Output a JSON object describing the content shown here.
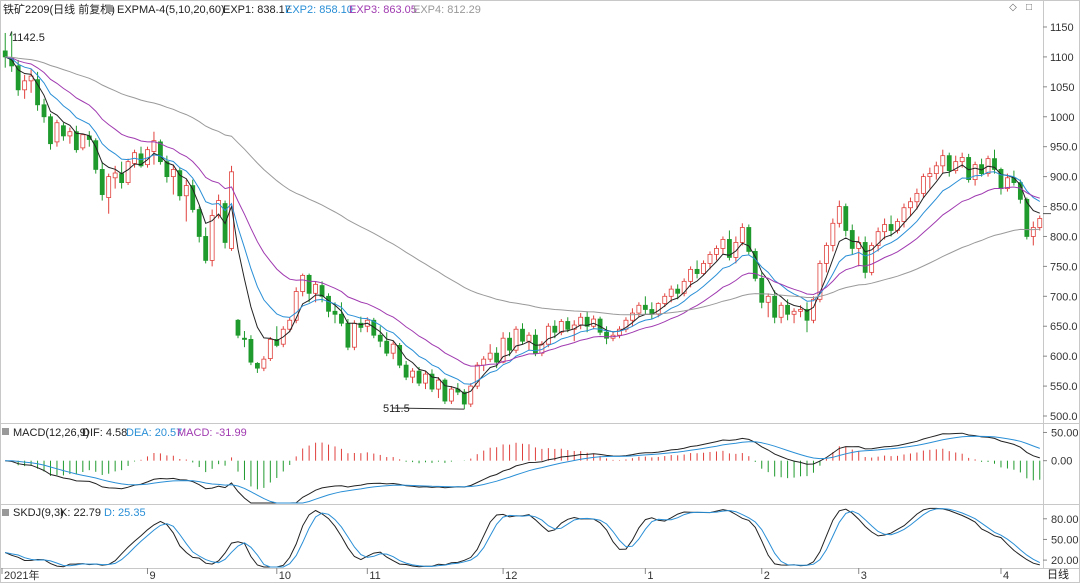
{
  "main_legend": {
    "instrument": "铁矿2209(日线 前复权)",
    "indicator": "EXPMA-4(5,10,20,60)",
    "exp1": "EXP1: 838.17",
    "exp2": "EXP2: 858.10",
    "exp3": "EXP3: 863.05",
    "exp4": "EXP4: 812.29"
  },
  "macd_legend": {
    "name": "MACD(12,26,9)",
    "dif": "DIF: 4.58",
    "dea": "DEA: 20.57",
    "macd": "MACD: -31.99"
  },
  "kdj_legend": {
    "name": "SKDJ(9,3)",
    "k": "K: 22.79",
    "d": "D: 25.35"
  },
  "annotations": {
    "high": "1142.5",
    "low": "511.5"
  },
  "corner_icons": [
    "diamond-icon",
    "square-icon"
  ],
  "x_axis": {
    "labels": [
      {
        "text": "2021年",
        "index": 0
      },
      {
        "text": "9",
        "index": 22
      },
      {
        "text": "10",
        "index": 42
      },
      {
        "text": "11",
        "index": 56
      },
      {
        "text": "12",
        "index": 77
      },
      {
        "text": "1",
        "index": 99
      },
      {
        "text": "2",
        "index": 117
      },
      {
        "text": "3",
        "index": 132
      },
      {
        "text": "4",
        "index": 154
      }
    ],
    "period_button": "日线"
  },
  "colors": {
    "up": "#e0403c",
    "down": "#1f9a2d",
    "exp1": "#222222",
    "exp2": "#2a8fd6",
    "exp3": "#a03ab0",
    "exp4": "#9a9a9a",
    "dif": "#222222",
    "dea": "#2a8fd6",
    "grid": "#e6e6e6"
  },
  "chart_data": [
    {
      "type": "candlestick",
      "title": "铁矿2209(日线 前复权)",
      "yticks": [
        "1150",
        "1100",
        "1050",
        "1000",
        "950.0",
        "900.0",
        "850.0",
        "800.0",
        "750.0",
        "700.0",
        "650.0",
        "600.0",
        "550.0",
        "500.0"
      ],
      "ylim": [
        490,
        1165
      ],
      "current_price": 838.17,
      "ohlc": [
        [
          1110,
          1140,
          1082,
          1100
        ],
        [
          1098,
          1142.5,
          1075,
          1085
        ],
        [
          1085,
          1095,
          1035,
          1045
        ],
        [
          1045,
          1070,
          1030,
          1060
        ],
        [
          1060,
          1080,
          1040,
          1068
        ],
        [
          1062,
          1075,
          1010,
          1020
        ],
        [
          1020,
          1030,
          990,
          1000
        ],
        [
          1000,
          1005,
          945,
          955
        ],
        [
          958,
          995,
          950,
          990
        ],
        [
          985,
          990,
          960,
          968
        ],
        [
          968,
          982,
          955,
          975
        ],
        [
          975,
          985,
          940,
          945
        ],
        [
          948,
          972,
          944,
          970
        ],
        [
          968,
          976,
          950,
          962
        ],
        [
          960,
          964,
          905,
          912
        ],
        [
          912,
          925,
          860,
          870
        ],
        [
          865,
          905,
          838,
          900
        ],
        [
          898,
          918,
          880,
          906
        ],
        [
          905,
          925,
          880,
          890
        ],
        [
          890,
          930,
          886,
          925
        ],
        [
          922,
          945,
          915,
          940
        ],
        [
          938,
          950,
          915,
          918
        ],
        [
          920,
          950,
          915,
          945
        ],
        [
          942,
          975,
          920,
          960
        ],
        [
          958,
          962,
          920,
          925
        ],
        [
          925,
          935,
          890,
          900
        ],
        [
          900,
          920,
          870,
          912
        ],
        [
          910,
          915,
          860,
          868
        ],
        [
          868,
          895,
          825,
          885
        ],
        [
          885,
          895,
          840,
          845
        ],
        [
          845,
          850,
          790,
          800
        ],
        [
          800,
          815,
          755,
          760
        ],
        [
          760,
          845,
          750,
          835
        ],
        [
          835,
          870,
          830,
          860
        ],
        [
          855,
          860,
          780,
          790
        ],
        [
          780,
          918,
          776,
          908
        ],
        [
          660,
          662,
          630,
          635
        ],
        [
          630,
          642,
          615,
          628
        ],
        [
          628,
          635,
          585,
          590
        ],
        [
          588,
          590,
          572,
          580
        ],
        [
          580,
          600,
          575,
          595
        ],
        [
          596,
          632,
          592,
          628
        ],
        [
          628,
          650,
          615,
          618
        ],
        [
          620,
          650,
          615,
          645
        ],
        [
          645,
          665,
          640,
          660
        ],
        [
          660,
          715,
          655,
          708
        ],
        [
          708,
          738,
          700,
          735
        ],
        [
          735,
          738,
          690,
          705
        ],
        [
          705,
          725,
          690,
          720
        ],
        [
          718,
          725,
          690,
          700
        ],
        [
          700,
          705,
          665,
          675
        ],
        [
          675,
          690,
          655,
          670
        ],
        [
          670,
          690,
          650,
          655
        ],
        [
          655,
          662,
          610,
          615
        ],
        [
          615,
          660,
          610,
          655
        ],
        [
          655,
          666,
          640,
          648
        ],
        [
          650,
          665,
          640,
          660
        ],
        [
          660,
          664,
          630,
          635
        ],
        [
          635,
          650,
          615,
          625
        ],
        [
          625,
          640,
          600,
          605
        ],
        [
          605,
          625,
          595,
          620
        ],
        [
          618,
          622,
          580,
          585
        ],
        [
          585,
          592,
          560,
          565
        ],
        [
          565,
          580,
          555,
          575
        ],
        [
          575,
          582,
          550,
          555
        ],
        [
          555,
          575,
          545,
          570
        ],
        [
          570,
          578,
          540,
          545
        ],
        [
          545,
          565,
          530,
          560
        ],
        [
          560,
          563,
          520,
          525
        ],
        [
          525,
          550,
          520,
          545
        ],
        [
          545,
          555,
          535,
          540
        ],
        [
          540,
          545,
          511.5,
          520
        ],
        [
          520,
          555,
          515,
          550
        ],
        [
          550,
          590,
          545,
          585
        ],
        [
          585,
          600,
          575,
          595
        ],
        [
          595,
          620,
          590,
          605
        ],
        [
          605,
          615,
          580,
          590
        ],
        [
          590,
          640,
          588,
          630
        ],
        [
          630,
          640,
          600,
          610
        ],
        [
          610,
          650,
          605,
          645
        ],
        [
          645,
          655,
          620,
          625
        ],
        [
          625,
          640,
          610,
          635
        ],
        [
          635,
          645,
          600,
          605
        ],
        [
          605,
          625,
          600,
          620
        ],
        [
          620,
          655,
          615,
          650
        ],
        [
          650,
          660,
          630,
          640
        ],
        [
          640,
          662,
          635,
          658
        ],
        [
          658,
          665,
          640,
          645
        ],
        [
          645,
          660,
          625,
          652
        ],
        [
          652,
          672,
          645,
          665
        ],
        [
          665,
          675,
          640,
          650
        ],
        [
          650,
          668,
          645,
          662
        ],
        [
          662,
          666,
          635,
          640
        ],
        [
          640,
          650,
          620,
          630
        ],
        [
          630,
          640,
          625,
          635
        ],
        [
          635,
          650,
          630,
          645
        ],
        [
          645,
          665,
          640,
          660
        ],
        [
          660,
          680,
          650,
          672
        ],
        [
          672,
          690,
          665,
          685
        ],
        [
          685,
          700,
          670,
          678
        ],
        [
          678,
          690,
          662,
          670
        ],
        [
          670,
          690,
          665,
          688
        ],
        [
          688,
          705,
          682,
          700
        ],
        [
          700,
          718,
          690,
          712
        ],
        [
          712,
          720,
          695,
          705
        ],
        [
          705,
          730,
          700,
          725
        ],
        [
          725,
          750,
          715,
          745
        ],
        [
          745,
          760,
          730,
          738
        ],
        [
          738,
          760,
          735,
          755
        ],
        [
          755,
          775,
          745,
          770
        ],
        [
          770,
          785,
          760,
          780
        ],
        [
          780,
          800,
          770,
          795
        ],
        [
          795,
          810,
          760,
          765
        ],
        [
          765,
          800,
          755,
          790
        ],
        [
          790,
          822,
          785,
          815
        ],
        [
          815,
          820,
          770,
          775
        ],
        [
          775,
          780,
          725,
          730
        ],
        [
          730,
          740,
          680,
          690
        ],
        [
          690,
          705,
          665,
          700
        ],
        [
          700,
          710,
          655,
          665
        ],
        [
          665,
          690,
          655,
          685
        ],
        [
          685,
          695,
          660,
          670
        ],
        [
          670,
          680,
          655,
          675
        ],
        [
          675,
          685,
          665,
          678
        ],
        [
          678,
          690,
          640,
          660
        ],
        [
          660,
          700,
          655,
          695
        ],
        [
          695,
          760,
          690,
          755
        ],
        [
          755,
          790,
          740,
          785
        ],
        [
          785,
          830,
          775,
          822
        ],
        [
          822,
          860,
          815,
          850
        ],
        [
          850,
          855,
          800,
          810
        ],
        [
          810,
          820,
          770,
          780
        ],
        [
          780,
          800,
          750,
          790
        ],
        [
          790,
          800,
          730,
          740
        ],
        [
          740,
          790,
          735,
          785
        ],
        [
          785,
          815,
          775,
          808
        ],
        [
          808,
          830,
          795,
          820
        ],
        [
          820,
          835,
          800,
          810
        ],
        [
          810,
          830,
          805,
          825
        ],
        [
          825,
          855,
          815,
          848
        ],
        [
          848,
          865,
          835,
          858
        ],
        [
          858,
          880,
          845,
          872
        ],
        [
          872,
          905,
          865,
          900
        ],
        [
          900,
          915,
          880,
          905
        ],
        [
          905,
          925,
          895,
          918
        ],
        [
          918,
          945,
          905,
          935
        ],
        [
          935,
          940,
          900,
          910
        ],
        [
          910,
          935,
          905,
          925
        ],
        [
          925,
          940,
          915,
          932
        ],
        [
          932,
          938,
          890,
          895
        ],
        [
          895,
          925,
          885,
          920
        ],
        [
          920,
          930,
          900,
          905
        ],
        [
          905,
          935,
          900,
          930
        ],
        [
          930,
          945,
          905,
          912
        ],
        [
          912,
          915,
          870,
          880
        ],
        [
          880,
          905,
          875,
          898
        ],
        [
          898,
          910,
          885,
          890
        ],
        [
          890,
          895,
          855,
          862
        ],
        [
          862,
          865,
          795,
          800
        ],
        [
          800,
          825,
          785,
          815
        ],
        [
          815,
          835,
          810,
          830
        ]
      ],
      "expma_periods": [
        5,
        10,
        20,
        60
      ]
    },
    {
      "type": "bar+line",
      "title": "MACD(12,26,9)",
      "yticks": [
        "50.00",
        "0.00"
      ],
      "ylim": [
        -75,
        65
      ],
      "series": [
        {
          "name": "DIF"
        },
        {
          "name": "DEA"
        },
        {
          "name": "MACD"
        }
      ]
    },
    {
      "type": "line",
      "title": "SKDJ(9,3)",
      "yticks": [
        "80.00",
        "50.00",
        "20.00"
      ],
      "ylim": [
        10,
        100
      ],
      "series": [
        {
          "name": "K"
        },
        {
          "name": "D"
        }
      ]
    }
  ]
}
